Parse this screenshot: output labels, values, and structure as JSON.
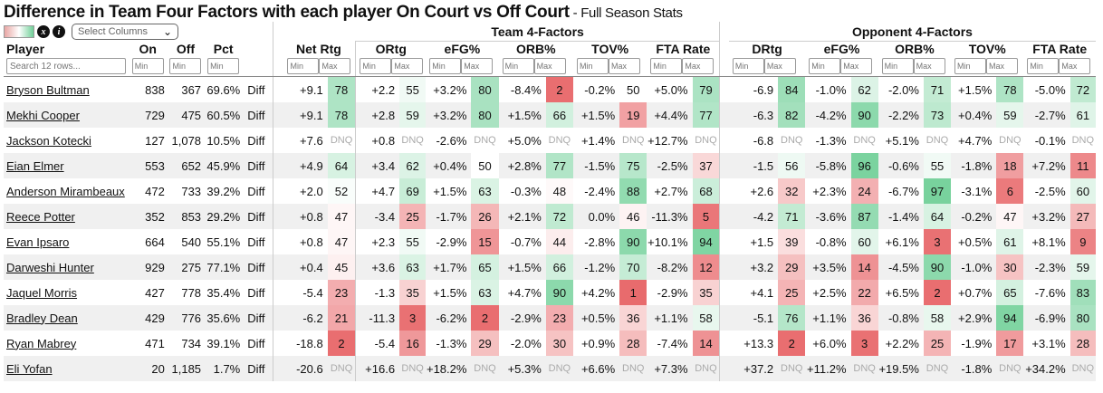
{
  "title": "Difference in Team Four Factors with each player On Court vs Off Court",
  "subtitle": " - Full Season Stats",
  "toolbar": {
    "legend_icon": "color-gradient-legend",
    "x_icon": "x",
    "info_icon": "i",
    "select_columns": "Select Columns"
  },
  "groups": {
    "team": "Team 4-Factors",
    "opp": "Opponent 4-Factors"
  },
  "headers": {
    "player": "Player",
    "on": "On",
    "off": "Off",
    "pct": "Pct",
    "netrtg": "Net Rtg",
    "ortg": "ORtg",
    "efg": "eFG%",
    "orb": "ORB%",
    "tov": "TOV%",
    "fta": "FTA Rate",
    "drtg": "DRtg",
    "oefg": "eFG%",
    "oorb": "ORB%",
    "otov": "TOV%",
    "ofta": "FTA Rate"
  },
  "filters": {
    "search_placeholder": "Search 12 rows...",
    "min": "Min",
    "max": "Max"
  },
  "diff_label": "Diff",
  "dnq": "DNQ",
  "colors": {
    "green_max": "#6fcf97",
    "red_max": "#e8686a",
    "neutral": "#ffffff"
  },
  "rows": [
    {
      "player": "Bryson Bultman",
      "on": "838",
      "off": "367",
      "pct": "69.6%",
      "net": "+9.1",
      "netp": 78,
      "ortg": "+2.2",
      "ortgp": 55,
      "efg": "+3.2%",
      "efgp": 80,
      "orb": "-8.4%",
      "orbp": 2,
      "tov": "-0.2%",
      "tovp": 50,
      "fta": "+5.0%",
      "ftap": 79,
      "drtg": "-6.9",
      "drtgp": 84,
      "oefg": "-1.0%",
      "oefgp": 62,
      "oorb": "-2.0%",
      "oorbp": 71,
      "otov": "+1.5%",
      "otovp": 78,
      "ofta": "-5.0%",
      "oftap": 72
    },
    {
      "player": "Mekhi Cooper",
      "on": "729",
      "off": "475",
      "pct": "60.5%",
      "net": "+9.1",
      "netp": 78,
      "ortg": "+2.8",
      "ortgp": 59,
      "efg": "+3.2%",
      "efgp": 80,
      "orb": "+1.5%",
      "orbp": 66,
      "tov": "+1.5%",
      "tovp": 19,
      "fta": "+4.4%",
      "ftap": 77,
      "drtg": "-6.3",
      "drtgp": 82,
      "oefg": "-4.2%",
      "oefgp": 90,
      "oorb": "-2.2%",
      "oorbp": 73,
      "otov": "+0.4%",
      "otovp": 59,
      "ofta": "-2.7%",
      "oftap": 61
    },
    {
      "player": "Jackson Kotecki",
      "on": "127",
      "off": "1,078",
      "pct": "10.5%",
      "net": "+7.6",
      "netp": null,
      "ortg": "+0.8",
      "ortgp": null,
      "efg": "-2.6%",
      "efgp": null,
      "orb": "+5.0%",
      "orbp": null,
      "tov": "+1.4%",
      "tovp": null,
      "fta": "+12.7%",
      "ftap": null,
      "drtg": "-6.8",
      "drtgp": null,
      "oefg": "-1.3%",
      "oefgp": null,
      "oorb": "+5.1%",
      "oorbp": null,
      "otov": "+4.7%",
      "otovp": null,
      "ofta": "-0.1%",
      "oftap": null
    },
    {
      "player": "Eian Elmer",
      "on": "553",
      "off": "652",
      "pct": "45.9%",
      "net": "+4.9",
      "netp": 64,
      "ortg": "+3.4",
      "ortgp": 62,
      "efg": "+0.4%",
      "efgp": 50,
      "orb": "+2.8%",
      "orbp": 77,
      "tov": "-1.5%",
      "tovp": 75,
      "fta": "-2.5%",
      "ftap": 37,
      "drtg": "-1.5",
      "drtgp": 56,
      "oefg": "-5.8%",
      "oefgp": 96,
      "oorb": "-0.6%",
      "oorbp": 55,
      "otov": "-1.8%",
      "otovp": 18,
      "ofta": "+7.2%",
      "oftap": 11
    },
    {
      "player": "Anderson Mirambeaux",
      "on": "472",
      "off": "733",
      "pct": "39.2%",
      "net": "+2.0",
      "netp": 52,
      "ortg": "+4.7",
      "ortgp": 69,
      "efg": "+1.5%",
      "efgp": 63,
      "orb": "-0.3%",
      "orbp": 48,
      "tov": "-2.4%",
      "tovp": 88,
      "fta": "+2.7%",
      "ftap": 68,
      "drtg": "+2.6",
      "drtgp": 32,
      "oefg": "+2.3%",
      "oefgp": 24,
      "oorb": "-6.7%",
      "oorbp": 97,
      "otov": "-3.1%",
      "otovp": 6,
      "ofta": "-2.5%",
      "oftap": 60
    },
    {
      "player": "Reece Potter",
      "on": "352",
      "off": "853",
      "pct": "29.2%",
      "net": "+0.8",
      "netp": 47,
      "ortg": "-3.4",
      "ortgp": 25,
      "efg": "-1.7%",
      "efgp": 26,
      "orb": "+2.1%",
      "orbp": 72,
      "tov": "0.0%",
      "tovp": 46,
      "fta": "-11.3%",
      "ftap": 5,
      "drtg": "-4.2",
      "drtgp": 71,
      "oefg": "-3.6%",
      "oefgp": 87,
      "oorb": "-1.4%",
      "oorbp": 64,
      "otov": "-0.2%",
      "otovp": 47,
      "ofta": "+3.2%",
      "oftap": 27
    },
    {
      "player": "Evan Ipsaro",
      "on": "664",
      "off": "540",
      "pct": "55.1%",
      "net": "+0.8",
      "netp": 47,
      "ortg": "+2.3",
      "ortgp": 55,
      "efg": "-2.9%",
      "efgp": 15,
      "orb": "-0.7%",
      "orbp": 44,
      "tov": "-2.8%",
      "tovp": 90,
      "fta": "+10.1%",
      "ftap": 94,
      "drtg": "+1.5",
      "drtgp": 39,
      "oefg": "-0.8%",
      "oefgp": 60,
      "oorb": "+6.1%",
      "oorbp": 3,
      "otov": "+0.5%",
      "otovp": 61,
      "ofta": "+8.1%",
      "oftap": 9
    },
    {
      "player": "Darweshi Hunter",
      "on": "929",
      "off": "275",
      "pct": "77.1%",
      "net": "+0.4",
      "netp": 45,
      "ortg": "+3.6",
      "ortgp": 63,
      "efg": "+1.7%",
      "efgp": 65,
      "orb": "+1.5%",
      "orbp": 66,
      "tov": "-1.2%",
      "tovp": 70,
      "fta": "-8.2%",
      "ftap": 12,
      "drtg": "+3.2",
      "drtgp": 29,
      "oefg": "+3.5%",
      "oefgp": 14,
      "oorb": "-4.5%",
      "oorbp": 90,
      "otov": "-1.0%",
      "otovp": 30,
      "ofta": "-2.3%",
      "oftap": 59
    },
    {
      "player": "Jaquel Morris",
      "on": "427",
      "off": "778",
      "pct": "35.4%",
      "net": "-5.4",
      "netp": 23,
      "ortg": "-1.3",
      "ortgp": 35,
      "efg": "+1.5%",
      "efgp": 63,
      "orb": "+4.7%",
      "orbp": 90,
      "tov": "+4.2%",
      "tovp": 1,
      "fta": "-2.9%",
      "ftap": 35,
      "drtg": "+4.1",
      "drtgp": 25,
      "oefg": "+2.5%",
      "oefgp": 22,
      "oorb": "+6.5%",
      "oorbp": 2,
      "otov": "+0.7%",
      "otovp": 65,
      "ofta": "-7.6%",
      "oftap": 83
    },
    {
      "player": "Bradley Dean",
      "on": "429",
      "off": "776",
      "pct": "35.6%",
      "net": "-6.2",
      "netp": 21,
      "ortg": "-11.3",
      "ortgp": 3,
      "efg": "-6.2%",
      "efgp": 2,
      "orb": "-2.9%",
      "orbp": 23,
      "tov": "+0.5%",
      "tovp": 36,
      "fta": "+1.1%",
      "ftap": 58,
      "drtg": "-5.1",
      "drtgp": 76,
      "oefg": "+1.1%",
      "oefgp": 36,
      "oorb": "-0.8%",
      "oorbp": 58,
      "otov": "+2.9%",
      "otovp": 94,
      "ofta": "-6.9%",
      "oftap": 80
    },
    {
      "player": "Ryan Mabrey",
      "on": "471",
      "off": "734",
      "pct": "39.1%",
      "net": "-18.8",
      "netp": 2,
      "ortg": "-5.4",
      "ortgp": 16,
      "efg": "-1.3%",
      "efgp": 29,
      "orb": "-2.0%",
      "orbp": 30,
      "tov": "+0.9%",
      "tovp": 28,
      "fta": "-7.4%",
      "ftap": 14,
      "drtg": "+13.3",
      "drtgp": 2,
      "oefg": "+6.0%",
      "oefgp": 3,
      "oorb": "+2.2%",
      "oorbp": 25,
      "otov": "-1.9%",
      "otovp": 17,
      "ofta": "+3.1%",
      "oftap": 28
    },
    {
      "player": "Eli Yofan",
      "on": "20",
      "off": "1,185",
      "pct": "1.7%",
      "net": "-20.6",
      "netp": null,
      "ortg": "+16.6",
      "ortgp": null,
      "efg": "+18.2%",
      "efgp": null,
      "orb": "+5.3%",
      "orbp": null,
      "tov": "+6.6%",
      "tovp": null,
      "fta": "+7.3%",
      "ftap": null,
      "drtg": "+37.2",
      "drtgp": null,
      "oefg": "+11.2%",
      "oefgp": null,
      "oorb": "+19.5%",
      "oorbp": null,
      "otov": "-1.8%",
      "otovp": null,
      "ofta": "+34.2%",
      "oftap": null
    }
  ]
}
